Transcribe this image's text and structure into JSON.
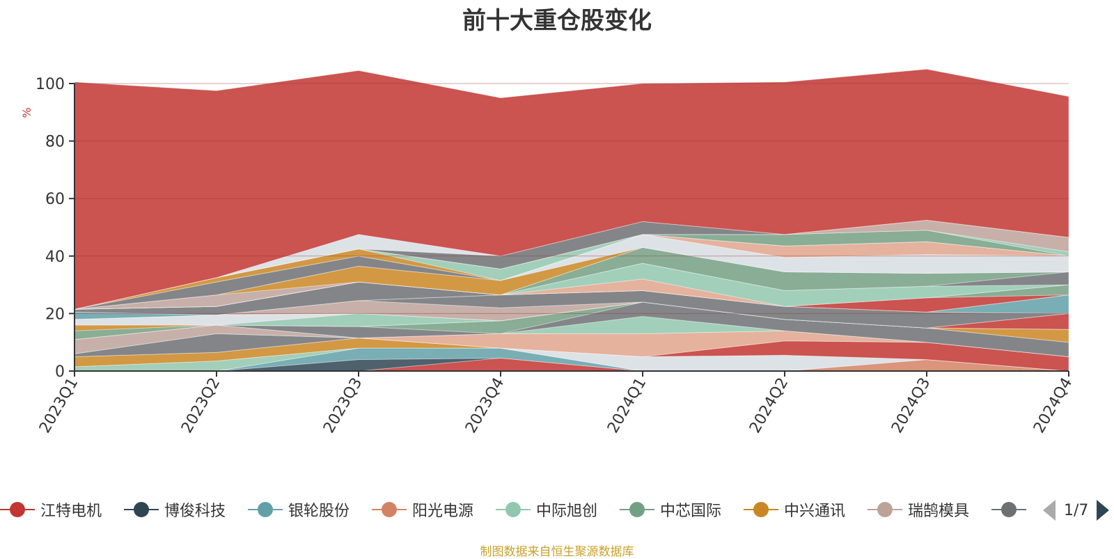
{
  "title": "前十大重仓股变化",
  "source_note": "制图数据来自恒生聚源数据库",
  "legend": {
    "items": [
      {
        "name": "江特电机",
        "color": "#c23531"
      },
      {
        "name": "博俊科技",
        "color": "#2f4554"
      },
      {
        "name": "银轮股份",
        "color": "#61a0a8"
      },
      {
        "name": "阳光电源",
        "color": "#d48265"
      },
      {
        "name": "中际旭创",
        "color": "#91c7ae"
      },
      {
        "name": "中芯国际",
        "color": "#749f83"
      },
      {
        "name": "中兴通讯",
        "color": "#ca8622"
      },
      {
        "name": "瑞鹄模具",
        "color": "#bda29a"
      },
      {
        "name": "",
        "color": "#6e7074"
      }
    ],
    "page_text": "1/7"
  },
  "chart_data": {
    "type": "area",
    "stacked": true,
    "title": "前十大重仓股变化",
    "ylabel": "%",
    "ylim": [
      0,
      100
    ],
    "yticks": [
      0,
      20,
      40,
      60,
      80,
      100
    ],
    "grid": true,
    "categories": [
      "2023Q1",
      "2023Q2",
      "2023Q3",
      "2023Q4",
      "2024Q1",
      "2024Q2",
      "2024Q3",
      "2024Q4"
    ],
    "series": [
      {
        "color": "#c23531",
        "values": [
          0,
          0,
          0,
          4.5,
          0,
          0,
          0,
          0
        ]
      },
      {
        "color": "#2f4554",
        "values": [
          0,
          0,
          4,
          0,
          0,
          0,
          0,
          0
        ]
      },
      {
        "color": "#61a0a8",
        "values": [
          0,
          0,
          4,
          3.5,
          0,
          0,
          0,
          0
        ]
      },
      {
        "color": "#d48265",
        "values": [
          0,
          0,
          0,
          0,
          0,
          0,
          4,
          0
        ]
      },
      {
        "color": "#91c7ae",
        "values": [
          1.5,
          3.5,
          0,
          0,
          0,
          0,
          0,
          0
        ]
      },
      {
        "color": "#d7dde3",
        "values": [
          0,
          0,
          0,
          0,
          5,
          5.5,
          0,
          0
        ]
      },
      {
        "color": "#ca8622",
        "values": [
          3.5,
          3,
          3.5,
          0,
          0,
          0,
          0,
          0
        ]
      },
      {
        "color": "#c23531",
        "values": [
          0,
          0,
          0,
          0,
          0,
          5,
          6,
          5
        ]
      },
      {
        "color": "#6e7074",
        "values": [
          1,
          6.5,
          0,
          0,
          0,
          0,
          0,
          0
        ]
      },
      {
        "color": "#e0a48c",
        "values": [
          0,
          0,
          0,
          5,
          8,
          3.5,
          0,
          0
        ]
      },
      {
        "color": "#bda29a",
        "values": [
          5,
          3,
          0,
          0,
          0,
          0,
          0,
          0
        ]
      },
      {
        "color": "#91c7ae",
        "values": [
          0,
          0,
          0,
          0,
          6,
          0,
          0,
          0
        ]
      },
      {
        "color": "#6e7074",
        "values": [
          0,
          0,
          4,
          0,
          5,
          4,
          5,
          5
        ]
      },
      {
        "color": "#749f83",
        "values": [
          3,
          0,
          0,
          4.5,
          0,
          0,
          0,
          0
        ]
      },
      {
        "color": "#ca8622",
        "values": [
          2,
          0,
          0,
          0,
          0,
          0,
          0,
          4.5
        ]
      },
      {
        "color": "#91c7ae",
        "values": [
          0,
          0,
          4.5,
          0,
          0,
          0,
          0,
          0
        ]
      },
      {
        "color": "#d7dde3",
        "values": [
          2,
          3.5,
          0,
          0,
          0,
          0,
          0,
          0
        ]
      },
      {
        "color": "#c23531",
        "values": [
          0,
          0,
          0,
          0,
          0,
          0,
          0,
          5.5
        ]
      },
      {
        "color": "#bda29a",
        "values": [
          0,
          0,
          4.5,
          4.5,
          0,
          0,
          0,
          0
        ]
      },
      {
        "color": "#6e7074",
        "values": [
          0,
          0,
          0,
          4.5,
          4,
          4.5,
          5.5,
          0
        ]
      },
      {
        "color": "#61a0a8",
        "values": [
          2.5,
          0,
          0,
          0,
          0,
          0,
          0,
          6.5
        ]
      },
      {
        "color": "#6e7074",
        "values": [
          1,
          3,
          6.5,
          0,
          0,
          0,
          0,
          0
        ]
      },
      {
        "color": "#c23531",
        "values": [
          0,
          0,
          0,
          0,
          0,
          0,
          5,
          0
        ]
      },
      {
        "color": "#749f83",
        "values": [
          0,
          0,
          0,
          0,
          0,
          0,
          0,
          3.5
        ]
      },
      {
        "color": "#e0a48c",
        "values": [
          0,
          0,
          0,
          0,
          4,
          0,
          0,
          0
        ]
      },
      {
        "color": "#91c7ae",
        "values": [
          0,
          0,
          0,
          0,
          5.5,
          5.5,
          4,
          0
        ]
      },
      {
        "color": "#6e7074",
        "values": [
          0,
          0,
          0,
          0,
          0,
          0,
          0,
          4.5
        ]
      },
      {
        "color": "#749f83",
        "values": [
          0,
          0,
          0,
          0,
          5.5,
          6.5,
          4.5,
          0
        ]
      },
      {
        "color": "#bda29a",
        "values": [
          0,
          4,
          0,
          0,
          0,
          0,
          0,
          0
        ]
      },
      {
        "color": "#ca8622",
        "values": [
          0,
          0,
          5.5,
          5,
          0,
          0,
          0,
          0
        ]
      },
      {
        "color": "#d7dde3",
        "values": [
          0,
          0,
          0,
          0,
          4.5,
          5,
          6.5,
          5.5
        ]
      },
      {
        "color": "#6e7074",
        "values": [
          0,
          4.5,
          3.5,
          0,
          0,
          0,
          0,
          0
        ]
      },
      {
        "color": "#e0a48c",
        "values": [
          0,
          0,
          0,
          0,
          0,
          4,
          4.5,
          0
        ]
      },
      {
        "color": "#ca8622",
        "values": [
          0,
          1.5,
          2.5,
          0,
          0,
          0,
          0,
          0
        ]
      },
      {
        "color": "#91c7ae",
        "values": [
          0,
          0,
          0,
          4,
          0,
          0,
          0,
          0
        ]
      },
      {
        "color": "#749f83",
        "values": [
          0,
          0,
          0,
          0,
          0,
          4,
          4,
          0
        ]
      },
      {
        "color": "#91c7ae",
        "values": [
          0,
          0,
          0,
          0,
          0,
          0,
          0,
          1.5
        ]
      },
      {
        "color": "#bda29a",
        "values": [
          0,
          0,
          0,
          0,
          0,
          0,
          3.5,
          5
        ]
      },
      {
        "color": "#6e7074",
        "values": [
          0,
          0,
          0,
          4.5,
          4.5,
          0,
          0,
          0
        ]
      },
      {
        "color": "#d7dde3",
        "values": [
          0,
          0,
          5,
          0,
          0,
          0,
          0,
          0
        ]
      },
      {
        "color": "#c23531",
        "values": [
          79,
          65,
          57,
          55,
          48,
          53,
          52.5,
          49
        ]
      }
    ]
  }
}
